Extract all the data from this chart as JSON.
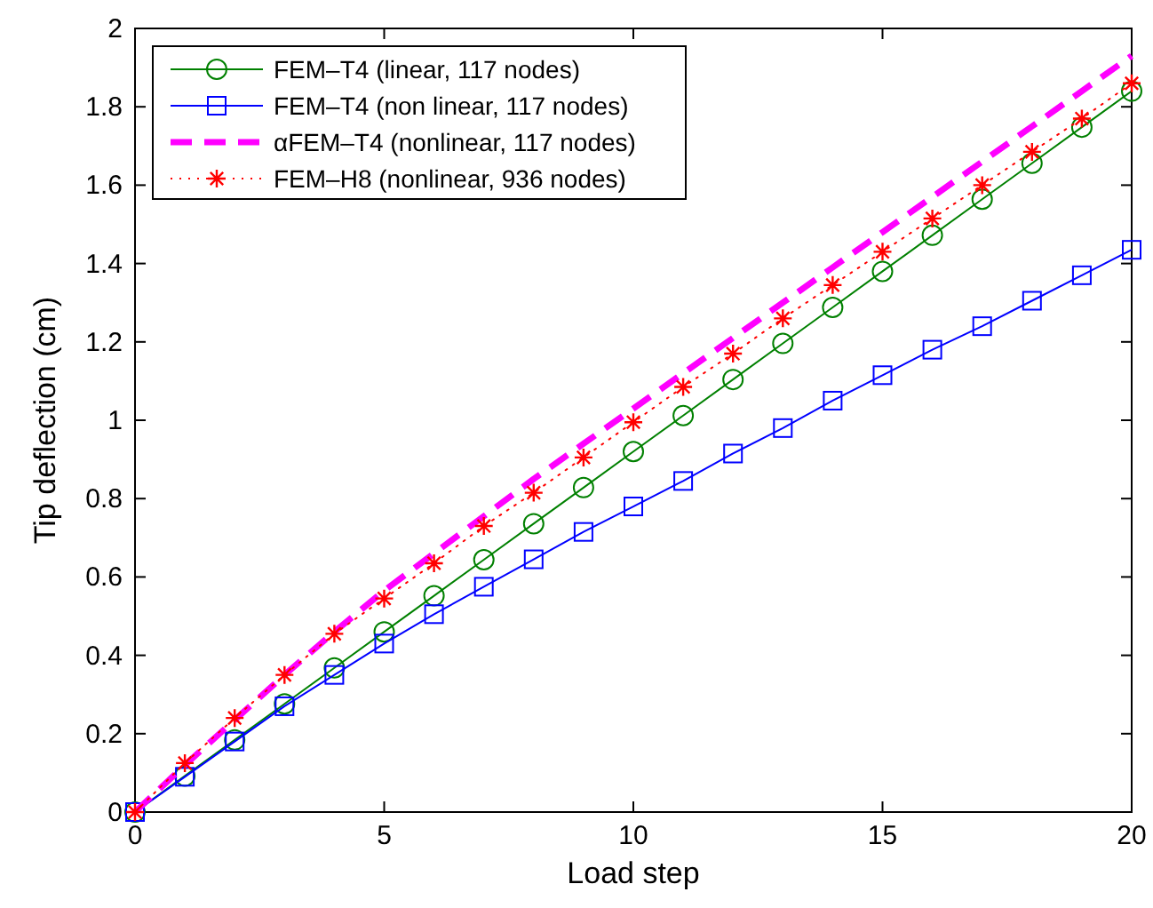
{
  "chart_data": {
    "type": "line",
    "xlabel": "Load step",
    "ylabel": "Tip deflection (cm)",
    "x": [
      0,
      1,
      2,
      3,
      4,
      5,
      6,
      7,
      8,
      9,
      10,
      11,
      12,
      13,
      14,
      15,
      16,
      17,
      18,
      19,
      20
    ],
    "xlim": [
      0,
      20
    ],
    "xticks": [
      0,
      5,
      10,
      15,
      20
    ],
    "ylim": [
      0,
      2
    ],
    "yticks": [
      0,
      0.2,
      0.4,
      0.6,
      0.8,
      1,
      1.2,
      1.4,
      1.6,
      1.8,
      2
    ],
    "grid": false,
    "legend": "top left",
    "series": [
      {
        "name": "FEM–T4 (linear, 117 nodes)",
        "color": "#008000",
        "marker": "circle",
        "line_style": "solid",
        "values": [
          0,
          0.092,
          0.184,
          0.276,
          0.368,
          0.46,
          0.552,
          0.644,
          0.736,
          0.828,
          0.92,
          1.012,
          1.104,
          1.196,
          1.288,
          1.38,
          1.472,
          1.564,
          1.656,
          1.748,
          1.84
        ]
      },
      {
        "name": "FEM–T4 (non linear, 117 nodes)",
        "color": "#0000ff",
        "marker": "square",
        "line_style": "solid",
        "values": [
          0,
          0.09,
          0.18,
          0.27,
          0.35,
          0.43,
          0.505,
          0.575,
          0.645,
          0.715,
          0.78,
          0.845,
          0.915,
          0.98,
          1.05,
          1.115,
          1.18,
          1.24,
          1.305,
          1.37,
          1.435
        ]
      },
      {
        "name": "αFEM–T4 (nonlinear, 117 nodes)",
        "color": "#ff00ff",
        "marker": "none",
        "line_style": "dashed",
        "values": [
          0,
          0.12,
          0.235,
          0.35,
          0.46,
          0.565,
          0.66,
          0.755,
          0.85,
          0.94,
          1.03,
          1.12,
          1.21,
          1.3,
          1.39,
          1.48,
          1.57,
          1.66,
          1.75,
          1.84,
          1.93
        ]
      },
      {
        "name": "FEM–H8 (nonlinear, 936 nodes)",
        "color": "#ff0000",
        "marker": "cross",
        "line_style": "dotted",
        "values": [
          0,
          0.125,
          0.24,
          0.35,
          0.455,
          0.545,
          0.635,
          0.73,
          0.815,
          0.905,
          0.995,
          1.085,
          1.17,
          1.26,
          1.345,
          1.43,
          1.515,
          1.6,
          1.685,
          1.77,
          1.86
        ]
      }
    ]
  }
}
